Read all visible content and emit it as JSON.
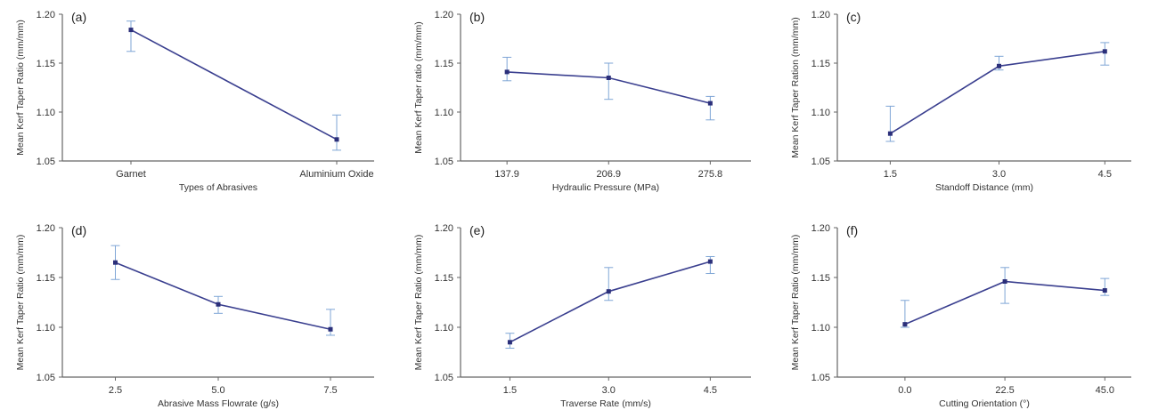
{
  "colors": {
    "line": "#3a3f8f",
    "marker": "#2b2f7a",
    "error_bar": "#7fa6d6",
    "axis": "#666666"
  },
  "chart_data": [
    {
      "type": "line",
      "panel": "(a)",
      "categories": [
        "Garnet",
        "Aluminium Oxide"
      ],
      "values": [
        1.184,
        1.072
      ],
      "error_upper": [
        1.193,
        1.097
      ],
      "error_lower": [
        1.162,
        1.061
      ],
      "xlabel": "Types of Abrasives",
      "ylabel": "Mean Kerf Taper Ratio (mm/mm)",
      "ylim": [
        1.05,
        1.2
      ],
      "yticks": [
        "1.05",
        "1.10",
        "1.15",
        "1.20"
      ],
      "grid": false
    },
    {
      "type": "line",
      "panel": "(b)",
      "categories": [
        "137.9",
        "206.9",
        "275.8"
      ],
      "values": [
        1.141,
        1.135,
        1.109
      ],
      "error_upper": [
        1.156,
        1.15,
        1.116
      ],
      "error_lower": [
        1.132,
        1.113,
        1.092
      ],
      "xlabel": "Hydraulic Pressure (MPa)",
      "ylabel": "Mean Kerf Taper ratio (mm/mm)",
      "ylim": [
        1.05,
        1.2
      ],
      "yticks": [
        "1.05",
        "1.10",
        "1.15",
        "1.20"
      ],
      "grid": false
    },
    {
      "type": "line",
      "panel": "(c)",
      "categories": [
        "1.5",
        "3.0",
        "4.5"
      ],
      "values": [
        1.078,
        1.147,
        1.162
      ],
      "error_upper": [
        1.106,
        1.157,
        1.171
      ],
      "error_lower": [
        1.07,
        1.143,
        1.148
      ],
      "xlabel": "Standoff Distance (mm)",
      "ylabel": "Mean Kerf Taper Ration (mm/mm)",
      "ylim": [
        1.05,
        1.2
      ],
      "yticks": [
        "1.05",
        "1.10",
        "1.15",
        "1.20"
      ],
      "grid": false
    },
    {
      "type": "line",
      "panel": "(d)",
      "categories": [
        "2.5",
        "5.0",
        "7.5"
      ],
      "values": [
        1.165,
        1.123,
        1.098
      ],
      "error_upper": [
        1.182,
        1.131,
        1.118
      ],
      "error_lower": [
        1.148,
        1.114,
        1.092
      ],
      "xlabel": "Abrasive Mass Flowrate (g/s)",
      "ylabel": "Mean Kerf Taper Ratio (mm/mm)",
      "ylim": [
        1.05,
        1.2
      ],
      "yticks": [
        "1.05",
        "1.10",
        "1.15",
        "1.20"
      ],
      "grid": false
    },
    {
      "type": "line",
      "panel": "(e)",
      "categories": [
        "1.5",
        "3.0",
        "4.5"
      ],
      "values": [
        1.085,
        1.136,
        1.166
      ],
      "error_upper": [
        1.094,
        1.16,
        1.171
      ],
      "error_lower": [
        1.079,
        1.127,
        1.154
      ],
      "xlabel": "Traverse Rate (mm/s)",
      "ylabel": "Mean Kerf Taper Ratio (mm/mm)",
      "ylim": [
        1.05,
        1.2
      ],
      "yticks": [
        "1.05",
        "1.10",
        "1.15",
        "1.20"
      ],
      "grid": false
    },
    {
      "type": "line",
      "panel": "(f)",
      "categories": [
        "0.0",
        "22.5",
        "45.0"
      ],
      "values": [
        1.103,
        1.146,
        1.137
      ],
      "error_upper": [
        1.127,
        1.16,
        1.149
      ],
      "error_lower": [
        1.1,
        1.124,
        1.132
      ],
      "xlabel": "Cutting Orientation (°)",
      "ylabel": "Mean Kerf Taper Ratio (mm/mm)",
      "ylim": [
        1.05,
        1.2
      ],
      "yticks": [
        "1.05",
        "1.10",
        "1.15",
        "1.20"
      ],
      "grid": false
    }
  ]
}
